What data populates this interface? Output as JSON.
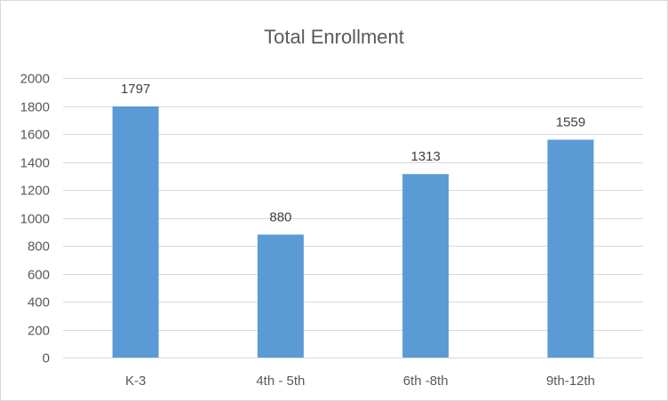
{
  "chart_data": {
    "type": "bar",
    "title": "Total Enrollment",
    "xlabel": "",
    "ylabel": "",
    "categories": [
      "K-3",
      "4th - 5th",
      "6th -8th",
      "9th-12th"
    ],
    "values": [
      1797,
      880,
      1313,
      1559
    ],
    "ylim": [
      0,
      2000
    ],
    "yticks": [
      0,
      200,
      400,
      600,
      800,
      1000,
      1200,
      1400,
      1600,
      1800,
      2000
    ],
    "grid": true,
    "legend": "none",
    "bar_color": "#5b9bd5",
    "data_labels": true
  }
}
